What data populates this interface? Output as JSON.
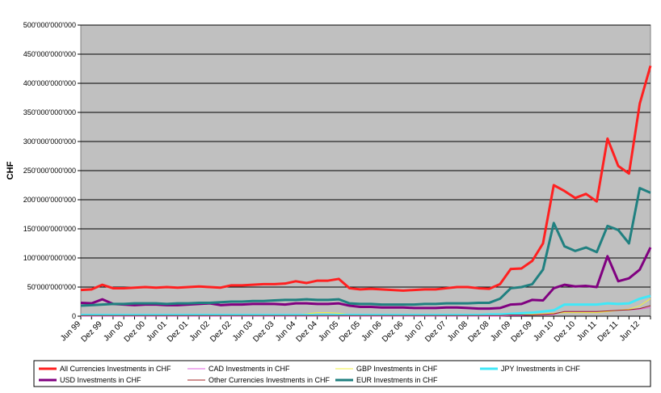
{
  "chart_data": {
    "type": "line",
    "y_label": "CHF",
    "categories": [
      "Jun 99",
      null,
      "Dez 99",
      null,
      "Jun 00",
      null,
      "Dez 00",
      null,
      "Jun 01",
      null,
      "Dez 01",
      null,
      "Jun 02",
      null,
      "Dez 02",
      null,
      "Jun 03",
      null,
      "Dez 03",
      null,
      "Jun 04",
      null,
      "Dez 04",
      null,
      "Jun 05",
      null,
      "Dez 05",
      null,
      "Jun 06",
      null,
      "Dez 06",
      null,
      "Jun 07",
      null,
      "Dez 07",
      null,
      "Jun 08",
      null,
      "Dez 08",
      null,
      "Jun 09",
      null,
      "Dez 09",
      null,
      "Jun 10",
      null,
      "Dez 10",
      null,
      "Jun 11",
      null,
      "Dez 11",
      null,
      "Jun 12",
      null
    ],
    "ylim": [
      0,
      500000000000
    ],
    "yticks": [
      0,
      {
        "value": 50000000000,
        "label": "50'000'000'000"
      },
      {
        "value": 100000000000,
        "label": "100'000'000'000"
      },
      {
        "value": 150000000000,
        "label": "150'000'000'000"
      },
      {
        "value": 200000000000,
        "label": "200'000'000'000"
      },
      {
        "value": 250000000000,
        "label": "250'000'000'000"
      },
      {
        "value": 300000000000,
        "label": "300'000'000'000"
      },
      {
        "value": 350000000000,
        "label": "350'000'000'000"
      },
      {
        "value": 400000000000,
        "label": "400'000'000'000"
      },
      {
        "value": 450000000000,
        "label": "450'000'000'000"
      },
      {
        "value": 500000000000,
        "label": "500'000'000'000"
      }
    ],
    "grid": true,
    "legend": "bottom",
    "series": [
      {
        "name": "All Currencies Investments in CHF",
        "color": "#ff2020",
        "width": 3,
        "values": [
          45000000000,
          46000000000,
          54000000000,
          48000000000,
          48000000000,
          49000000000,
          50000000000,
          49000000000,
          50000000000,
          49000000000,
          50000000000,
          51000000000,
          50000000000,
          49000000000,
          53000000000,
          53000000000,
          54000000000,
          55000000000,
          55000000000,
          56000000000,
          60000000000,
          57000000000,
          61000000000,
          61000000000,
          64000000000,
          48000000000,
          46000000000,
          47000000000,
          46000000000,
          45000000000,
          44000000000,
          45000000000,
          46000000000,
          46000000000,
          48000000000,
          50000000000,
          50000000000,
          48000000000,
          47000000000,
          55000000000,
          81000000000,
          82000000000,
          95000000000,
          125000000000,
          225000000000,
          215000000000,
          203000000000,
          210000000000,
          197000000000,
          305000000000,
          258000000000,
          245000000000,
          365000000000,
          430000000000
        ]
      },
      {
        "name": "CAD Investments in CHF",
        "color": "#e060e0",
        "width": 1,
        "values": [
          0,
          0,
          0,
          0,
          0,
          0,
          0,
          0,
          0,
          0,
          0,
          0,
          0,
          0,
          0,
          0,
          0,
          0,
          0,
          0,
          0,
          0,
          0,
          0,
          0,
          0,
          0,
          0,
          0,
          0,
          0,
          0,
          0,
          0,
          0,
          0,
          0,
          0,
          0,
          0,
          1000000000,
          1000000000,
          2000000000,
          2000000000,
          3000000000,
          8000000000,
          8000000000,
          8000000000,
          8000000000,
          9000000000,
          10000000000,
          11000000000,
          12000000000,
          15000000000
        ]
      },
      {
        "name": "GBP Investments in CHF",
        "color": "#f0f040",
        "width": 1,
        "values": [
          1000000000,
          1000000000,
          1000000000,
          1000000000,
          1000000000,
          1000000000,
          1000000000,
          1000000000,
          1000000000,
          1000000000,
          1000000000,
          1000000000,
          1000000000,
          1000000000,
          2000000000,
          2000000000,
          2000000000,
          2000000000,
          2000000000,
          3000000000,
          3000000000,
          4000000000,
          6000000000,
          6000000000,
          5000000000,
          3000000000,
          3000000000,
          3000000000,
          3000000000,
          3000000000,
          3000000000,
          3000000000,
          3000000000,
          3000000000,
          3000000000,
          3000000000,
          3000000000,
          3000000000,
          3000000000,
          3000000000,
          3000000000,
          3000000000,
          3000000000,
          4000000000,
          5000000000,
          6000000000,
          6000000000,
          6000000000,
          6000000000,
          8000000000,
          10000000000,
          12000000000,
          18000000000,
          30000000000
        ]
      },
      {
        "name": "JPY Investments in CHF",
        "color": "#40e8f8",
        "width": 3,
        "values": [
          2000000000,
          2000000000,
          2000000000,
          2000000000,
          2000000000,
          2000000000,
          2000000000,
          2000000000,
          2000000000,
          2000000000,
          2000000000,
          2000000000,
          2000000000,
          2000000000,
          2000000000,
          2000000000,
          2000000000,
          2000000000,
          2000000000,
          2000000000,
          2000000000,
          2000000000,
          2000000000,
          2000000000,
          2000000000,
          2000000000,
          2000000000,
          2000000000,
          2000000000,
          2000000000,
          2000000000,
          2000000000,
          2000000000,
          2000000000,
          2000000000,
          2000000000,
          2000000000,
          2000000000,
          3000000000,
          3000000000,
          4000000000,
          5000000000,
          6000000000,
          8000000000,
          10000000000,
          20000000000,
          20000000000,
          20000000000,
          20000000000,
          22000000000,
          21000000000,
          22000000000,
          30000000000,
          35000000000
        ]
      },
      {
        "name": "USD Investments in CHF",
        "color": "#800080",
        "width": 3,
        "values": [
          23000000000,
          22000000000,
          29000000000,
          21000000000,
          20000000000,
          19000000000,
          20000000000,
          20000000000,
          19000000000,
          19000000000,
          20000000000,
          21000000000,
          22000000000,
          19000000000,
          20000000000,
          20000000000,
          21000000000,
          21000000000,
          21000000000,
          20000000000,
          22000000000,
          22000000000,
          21000000000,
          21000000000,
          22000000000,
          18000000000,
          16000000000,
          16000000000,
          15000000000,
          15000000000,
          15000000000,
          14000000000,
          14000000000,
          14000000000,
          15000000000,
          15000000000,
          14000000000,
          13000000000,
          13000000000,
          14000000000,
          20000000000,
          21000000000,
          28000000000,
          27000000000,
          48000000000,
          54000000000,
          51000000000,
          52000000000,
          50000000000,
          103000000000,
          60000000000,
          65000000000,
          80000000000,
          118000000000
        ]
      },
      {
        "name": "Other Currencies Investments in CHF",
        "color": "#a02020",
        "width": 1,
        "values": [
          1000000000,
          1000000000,
          1000000000,
          1000000000,
          1000000000,
          1000000000,
          1000000000,
          1000000000,
          1000000000,
          1000000000,
          1000000000,
          1000000000,
          1000000000,
          1000000000,
          1000000000,
          1000000000,
          1000000000,
          1000000000,
          1000000000,
          1000000000,
          1000000000,
          1000000000,
          1000000000,
          1000000000,
          1000000000,
          1000000000,
          1000000000,
          1000000000,
          1000000000,
          1000000000,
          1000000000,
          1000000000,
          1000000000,
          1000000000,
          1000000000,
          1000000000,
          1000000000,
          1000000000,
          1000000000,
          1000000000,
          2000000000,
          2000000000,
          2000000000,
          3000000000,
          4000000000,
          8000000000,
          8000000000,
          8000000000,
          8000000000,
          9000000000,
          10000000000,
          11000000000,
          13000000000,
          18000000000
        ]
      },
      {
        "name": "EUR Investments in CHF",
        "color": "#208080",
        "width": 3,
        "values": [
          18000000000,
          19000000000,
          20000000000,
          21000000000,
          21000000000,
          22000000000,
          22000000000,
          22000000000,
          21000000000,
          22000000000,
          22000000000,
          23000000000,
          23000000000,
          24000000000,
          25000000000,
          25000000000,
          26000000000,
          26000000000,
          27000000000,
          28000000000,
          28000000000,
          29000000000,
          28000000000,
          28000000000,
          29000000000,
          22000000000,
          21000000000,
          21000000000,
          20000000000,
          20000000000,
          20000000000,
          20000000000,
          21000000000,
          21000000000,
          22000000000,
          22000000000,
          22000000000,
          23000000000,
          23000000000,
          30000000000,
          48000000000,
          50000000000,
          55000000000,
          80000000000,
          160000000000,
          120000000000,
          112000000000,
          118000000000,
          110000000000,
          155000000000,
          148000000000,
          125000000000,
          220000000000,
          212000000000
        ]
      }
    ]
  }
}
